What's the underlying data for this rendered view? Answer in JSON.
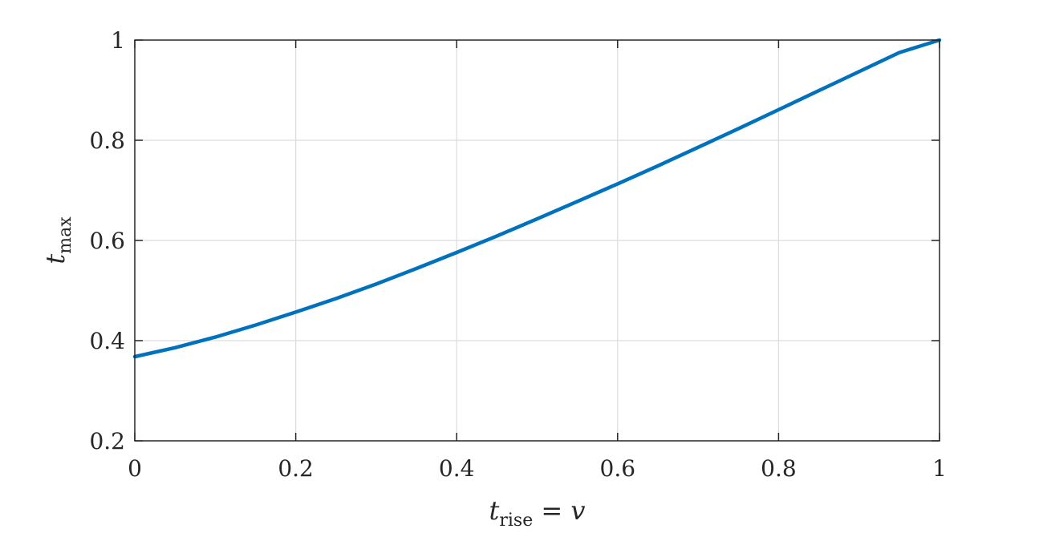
{
  "chart_data": {
    "type": "line",
    "xlabel": {
      "main": "t",
      "sub": "rise",
      "op": " = ",
      "var": "v"
    },
    "ylabel": {
      "main": "t",
      "sub": "max"
    },
    "xlim": [
      0,
      1
    ],
    "ylim": [
      0.2,
      1
    ],
    "xticks": [
      0,
      0.2,
      0.4,
      0.6,
      0.8,
      1
    ],
    "yticks": [
      0.2,
      0.4,
      0.6,
      0.8,
      1
    ],
    "xtick_labels": [
      "0",
      "0.2",
      "0.4",
      "0.6",
      "0.8",
      "1"
    ],
    "ytick_labels": [
      "0.2",
      "0.4",
      "0.6",
      "0.8",
      "1"
    ],
    "grid": true,
    "series": [
      {
        "color": "#0072BD",
        "x": [
          0,
          0.05,
          0.1,
          0.15,
          0.2,
          0.25,
          0.3,
          0.35,
          0.4,
          0.45,
          0.5,
          0.55,
          0.6,
          0.65,
          0.7,
          0.75,
          0.8,
          0.85,
          0.9,
          0.95,
          1
        ],
        "y": [
          0.368,
          0.386,
          0.407,
          0.431,
          0.457,
          0.484,
          0.513,
          0.544,
          0.576,
          0.609,
          0.643,
          0.678,
          0.713,
          0.749,
          0.786,
          0.823,
          0.861,
          0.899,
          0.937,
          0.975,
          1.0
        ]
      }
    ]
  }
}
